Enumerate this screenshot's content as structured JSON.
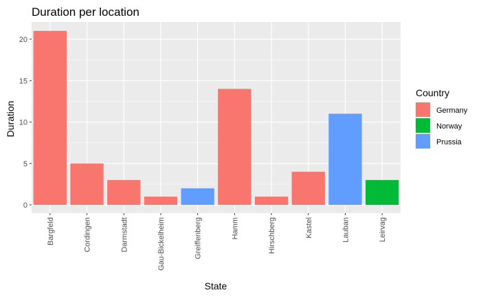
{
  "chart_data": {
    "type": "bar",
    "title": "Duration per location",
    "xlabel": "State",
    "ylabel": "Duration",
    "categories": [
      "Bargfeld",
      "Cordingen",
      "Darmstadt",
      "Gau-Bickelheim",
      "Greiffenberg",
      "Hamm",
      "Hirschberg",
      "Kastel",
      "Lauban",
      "Leirvag"
    ],
    "values": [
      21,
      5,
      3,
      1,
      2,
      14,
      1,
      4,
      11,
      3
    ],
    "groups": [
      "Germany",
      "Germany",
      "Germany",
      "Germany",
      "Prussia",
      "Germany",
      "Germany",
      "Germany",
      "Prussia",
      "Norway"
    ],
    "ylim": [
      0,
      22
    ],
    "yticks": [
      0,
      5,
      10,
      15,
      20
    ],
    "grid": true,
    "legend": {
      "title": "Country",
      "placement": "right",
      "entries": [
        {
          "name": "Germany",
          "color": "#f8766d"
        },
        {
          "name": "Norway",
          "color": "#00ba38"
        },
        {
          "name": "Prussia",
          "color": "#619cff"
        }
      ]
    },
    "panel_color": "#ebebeb",
    "grid_color": "#ffffff"
  }
}
